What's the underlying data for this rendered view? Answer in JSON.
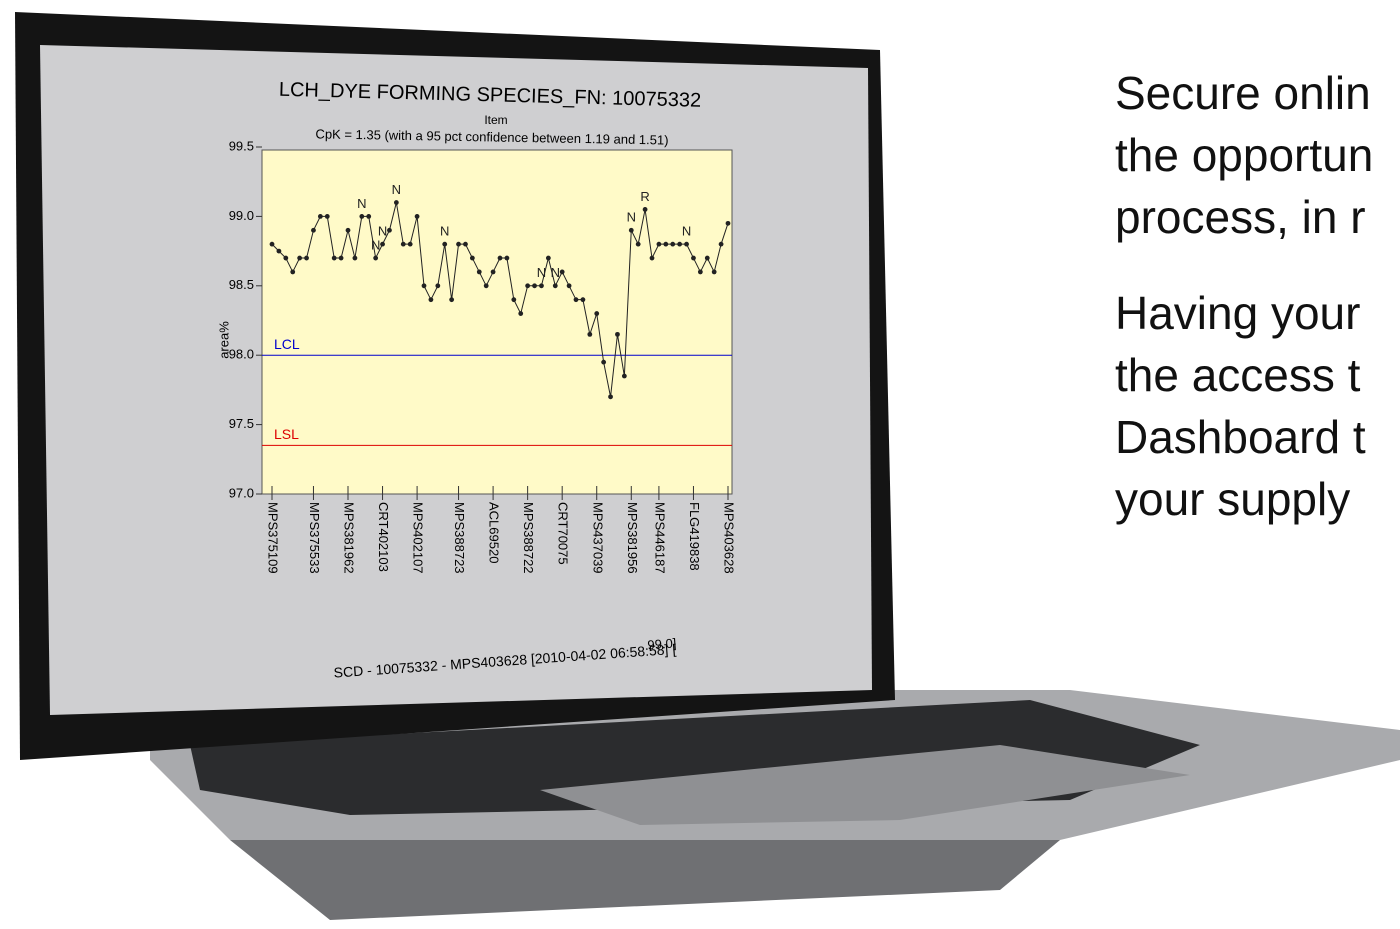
{
  "chart_data": {
    "type": "line",
    "title": "LCH_DYE FORMING SPECIES_FN: 10075332",
    "subtitle": "Item",
    "annotation": "CpK = 1.35 (with a 95 pct confidence between 1.19 and 1.51)",
    "y_label": "area%",
    "categories": [
      "MPS375109",
      null,
      null,
      null,
      null,
      null,
      "MPS375533",
      null,
      null,
      null,
      null,
      "MPS381962",
      null,
      null,
      null,
      null,
      "CRT402103",
      null,
      null,
      null,
      null,
      "MPS402107",
      null,
      null,
      null,
      null,
      null,
      "MPS388723",
      null,
      null,
      null,
      null,
      "ACL69520",
      null,
      null,
      null,
      null,
      "MPS388722",
      null,
      null,
      null,
      null,
      "CRT70075",
      null,
      null,
      null,
      null,
      "MPS437039",
      null,
      null,
      null,
      null,
      "MPS381956",
      null,
      null,
      null,
      "MPS446187",
      null,
      null,
      null,
      null,
      "FLG419838",
      null,
      null,
      null,
      null,
      "MPS403628"
    ],
    "series": [
      {
        "color": "#222222",
        "values": [
          98.8,
          98.75,
          98.7,
          98.6,
          98.7,
          98.7,
          98.9,
          99.0,
          99.0,
          98.7,
          98.7,
          98.9,
          98.7,
          99.0,
          99.0,
          98.7,
          98.8,
          98.9,
          99.1,
          98.8,
          98.8,
          99.0,
          98.5,
          98.4,
          98.5,
          98.8,
          98.4,
          98.8,
          98.8,
          98.7,
          98.6,
          98.5,
          98.6,
          98.7,
          98.7,
          98.4,
          98.3,
          98.5,
          98.5,
          98.5,
          98.7,
          98.5,
          98.6,
          98.5,
          98.4,
          98.4,
          98.15,
          98.3,
          97.95,
          97.7,
          98.15,
          97.85,
          98.9,
          98.8,
          99.05,
          98.7,
          98.8,
          98.8,
          98.8,
          98.8,
          98.8,
          98.7,
          98.6,
          98.7,
          98.6,
          98.8,
          98.95
        ]
      }
    ],
    "point_labels": [
      {
        "index": 13,
        "text": "N"
      },
      {
        "index": 15,
        "text": "N"
      },
      {
        "index": 16,
        "text": "N"
      },
      {
        "index": 18,
        "text": "N"
      },
      {
        "index": 25,
        "text": "N"
      },
      {
        "index": 39,
        "text": "N"
      },
      {
        "index": 41,
        "text": "N"
      },
      {
        "index": 52,
        "text": "N"
      },
      {
        "index": 54,
        "text": "R"
      },
      {
        "index": 60,
        "text": "N"
      }
    ],
    "control_limits": [
      {
        "name": "LCL",
        "value": 98.0,
        "color": "#0000cc"
      },
      {
        "name": "LSL",
        "value": 97.35,
        "color": "#dd0000"
      }
    ],
    "ylim": [
      97.0,
      99.5
    ],
    "yticks": [
      {
        "value": 97,
        "label": "97.0"
      },
      97.5,
      {
        "value": 98,
        "label": "98.0"
      },
      98.5,
      {
        "value": 99,
        "label": "99.0"
      },
      99.5
    ],
    "footer": "SCD - 10075332 - MPS403628 [2010-04-02 06:58:58] [",
    "footer_value": "99.0]"
  },
  "side_text": [
    [
      "Secure onlin",
      "the opportun",
      "process, in r"
    ],
    [
      "Having your",
      "the access t",
      "Dashboard t",
      "your supply"
    ]
  ]
}
